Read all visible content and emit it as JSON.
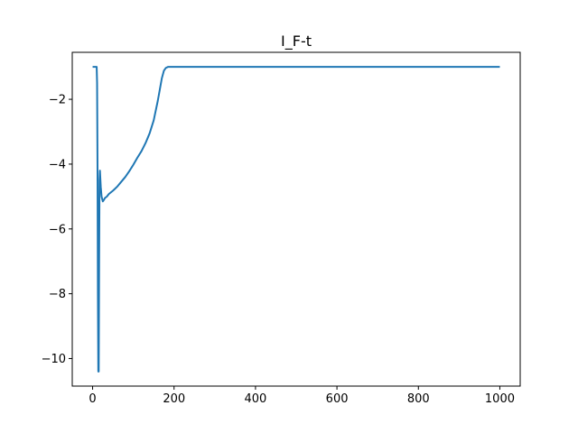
{
  "chart_data": {
    "type": "line",
    "title": "I_F-t",
    "xlabel": "",
    "ylabel": "",
    "xlim": [
      -50,
      1050
    ],
    "ylim": [
      -10.85,
      -0.55
    ],
    "grid": false,
    "x_ticks": [
      0,
      200,
      400,
      600,
      800,
      1000
    ],
    "x_tick_labels": [
      "0",
      "200",
      "400",
      "600",
      "800",
      "1000"
    ],
    "y_ticks": [
      -2,
      -4,
      -6,
      -8,
      -10
    ],
    "y_tick_labels": [
      "−2",
      "−4",
      "−6",
      "−8",
      "−10"
    ],
    "series": [
      {
        "color": "#1f77b4",
        "x": [
          0,
          5,
          10,
          11,
          12,
          13,
          14,
          15,
          16,
          17,
          18,
          20,
          22,
          25,
          28,
          30,
          35,
          40,
          50,
          60,
          70,
          80,
          90,
          100,
          110,
          120,
          130,
          140,
          150,
          160,
          165,
          170,
          175,
          180,
          185,
          190,
          200,
          300,
          400,
          500,
          600,
          700,
          800,
          900,
          1000
        ],
        "y": [
          -1.0,
          -1.0,
          -1.0,
          -1.5,
          -4.0,
          -8.0,
          -10.4,
          -10.4,
          -7.0,
          -4.5,
          -4.2,
          -4.7,
          -5.0,
          -5.15,
          -5.1,
          -5.05,
          -5.0,
          -4.92,
          -4.82,
          -4.7,
          -4.55,
          -4.4,
          -4.22,
          -4.02,
          -3.8,
          -3.6,
          -3.35,
          -3.05,
          -2.65,
          -2.05,
          -1.7,
          -1.35,
          -1.12,
          -1.03,
          -1.0,
          -1.0,
          -1.0,
          -1.0,
          -1.0,
          -1.0,
          -1.0,
          -1.0,
          -1.0,
          -1.0,
          -1.0
        ]
      }
    ]
  }
}
